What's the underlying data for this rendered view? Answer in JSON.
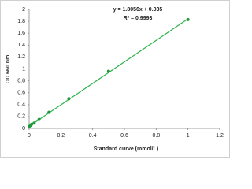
{
  "chart_data": {
    "type": "scatter",
    "x_label": "Standard curve (mmol/L)",
    "y_label": "OD 660 nm",
    "annotations": [
      "y = 1.8056x + 0.035",
      "R² = 0.9993"
    ],
    "series": [
      {
        "color": "#1f9a3a",
        "x": [
          0,
          0.0078,
          0.0156,
          0.03125,
          0.0625,
          0.125,
          0.25,
          0.5,
          1
        ],
        "values": [
          0.03,
          0.05,
          0.07,
          0.09,
          0.15,
          0.27,
          0.5,
          0.96,
          1.83
        ]
      }
    ],
    "trendline": {
      "color": "#2db34a",
      "x": [
        0,
        1
      ],
      "values": [
        0.035,
        1.8406
      ]
    },
    "xlim": [
      0,
      1.2
    ],
    "xticks": [
      0,
      0.2,
      0.4,
      0.6,
      0.8,
      1,
      1.2
    ],
    "ylim": [
      0,
      2
    ],
    "yticks": [
      0,
      0.2,
      0.4,
      0.6,
      0.8,
      1,
      1.2,
      1.4,
      1.6,
      1.8,
      2
    ],
    "grid": false
  }
}
